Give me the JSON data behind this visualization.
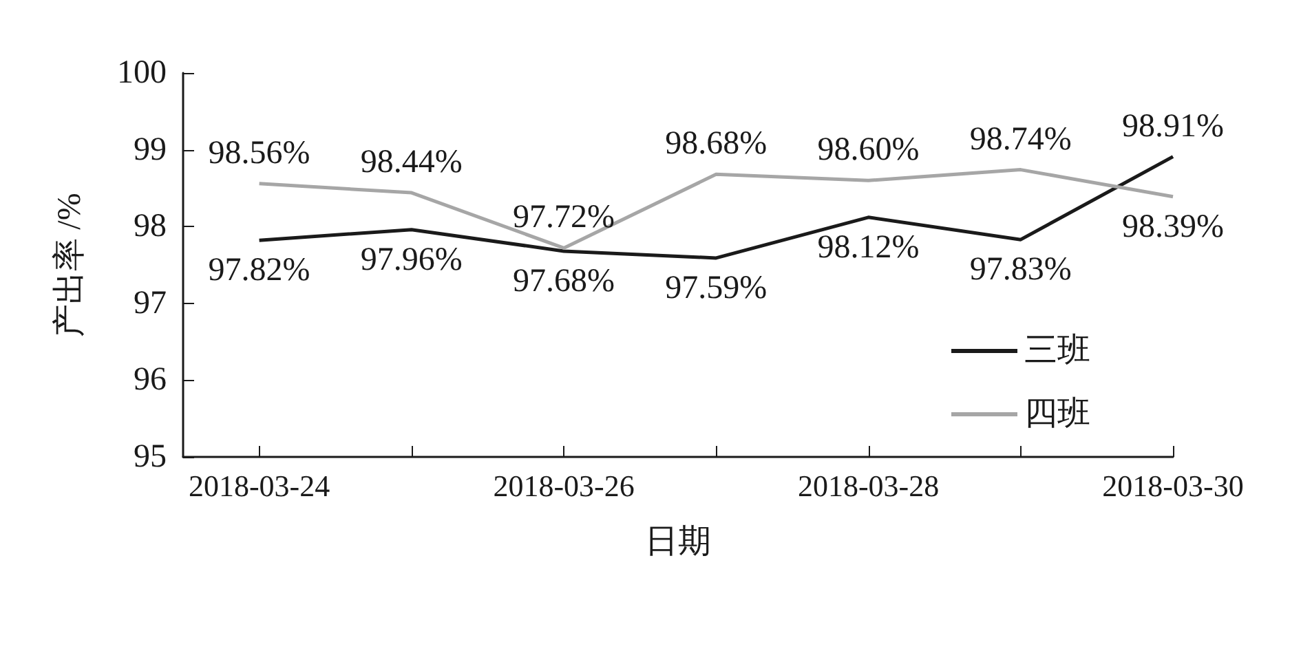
{
  "chart_data": {
    "type": "line",
    "xlabel": "日期",
    "ylabel": "产出率 /%",
    "x": [
      "2018-03-24",
      "2018-03-25",
      "2018-03-26",
      "2018-03-27",
      "2018-03-28",
      "2018-03-29",
      "2018-03-30"
    ],
    "xlim": [
      "2018-03-23T12:00",
      "2018-03-30"
    ],
    "xticks": [
      "2018-03-24",
      {
        "value": "2018-03-25",
        "label": null
      },
      "2018-03-26",
      {
        "value": "2018-03-27",
        "label": null
      },
      "2018-03-28",
      {
        "value": "2018-03-29",
        "label": null
      },
      "2018-03-30"
    ],
    "ylim": [
      95,
      100
    ],
    "yticks": [
      95,
      96,
      97,
      98,
      99,
      100
    ],
    "series": [
      {
        "name": "三班",
        "color": "#1a1a1a",
        "values": [
          97.82,
          97.96,
          97.68,
          97.59,
          98.12,
          97.83,
          98.91
        ],
        "value_labels": [
          "97.82%",
          "97.96%",
          "97.68%",
          "97.59%",
          "98.12%",
          "97.83%",
          "98.91%"
        ]
      },
      {
        "name": "四班",
        "color": "#a6a6a6",
        "values": [
          98.56,
          98.44,
          97.72,
          98.68,
          98.6,
          98.74,
          98.39
        ],
        "value_labels": [
          "98.56%",
          "98.44%",
          "97.72%",
          "98.68%",
          "98.60%",
          "98.74%",
          "98.39%"
        ]
      }
    ],
    "grid": false,
    "legend": "right",
    "marker": "none",
    "line_style": "solid"
  }
}
